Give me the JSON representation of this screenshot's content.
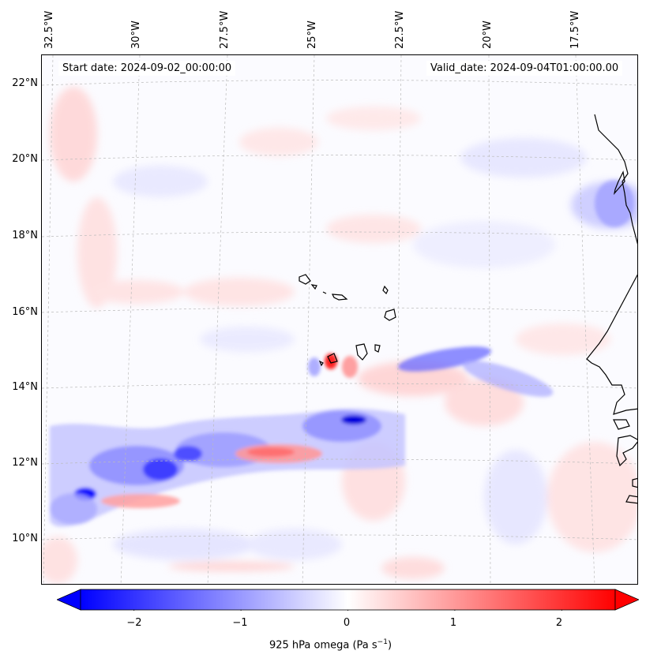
{
  "map": {
    "start_date": "Start date: 2024-09-02_00:00:00",
    "valid_date": "Valid_date: 2024-09-04T01:00:00.00",
    "longitude_labels": [
      "32.5°W",
      "30°W",
      "27.5°W",
      "25°W",
      "22.5°W",
      "20°W",
      "17.5°W"
    ],
    "latitude_labels": [
      "22°N",
      "20°N",
      "18°N",
      "16°N",
      "14°N",
      "12°N",
      "10°N"
    ],
    "colors": {
      "negative": "#0000ff",
      "zero": "#ffffff",
      "positive": "#ff0000",
      "coastline": "#000000",
      "gridline": "#bbbbbb"
    }
  },
  "colorbar": {
    "label_main": "925 hPa omega (Pa s",
    "label_exp": "−1",
    "label_end": ")",
    "ticks": [
      "−2",
      "−1",
      "0",
      "1",
      "2"
    ],
    "tick_values": [
      -2,
      -1,
      0,
      1,
      2
    ],
    "range": [
      -2.5,
      2.5
    ]
  }
}
